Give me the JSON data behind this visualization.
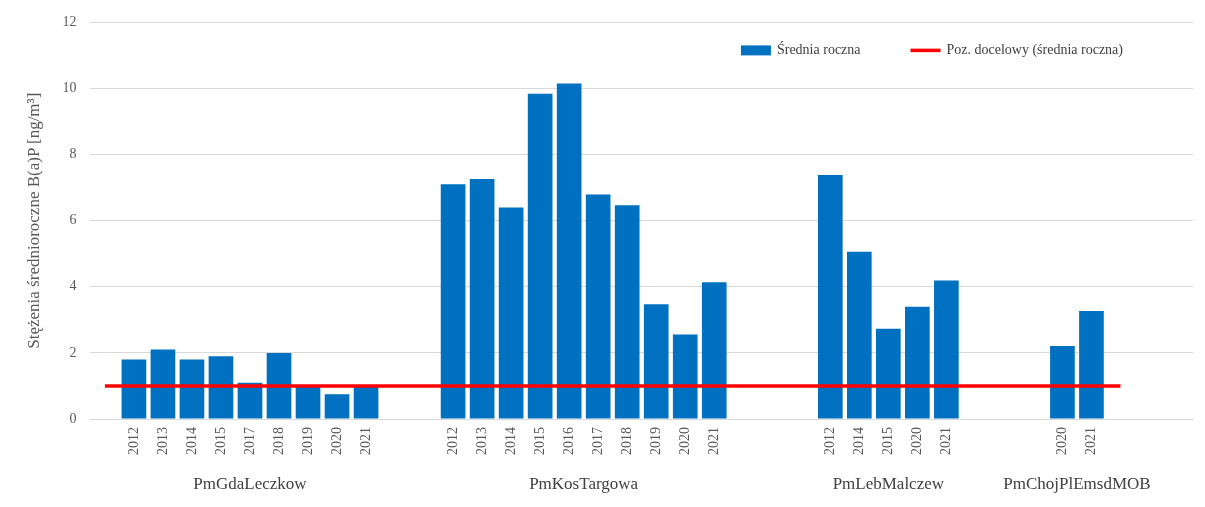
{
  "chart_data": {
    "type": "bar",
    "ylabel": "Stężenia średnioroczne B(a)P [ng/m³]",
    "categories": [
      null,
      "2012",
      "2013",
      "2014",
      "2015",
      "2017",
      "2018",
      "2019",
      "2020",
      "2021",
      null,
      null,
      "2012",
      "2013",
      "2014",
      "2015",
      "2016",
      "2017",
      "2018",
      "2019",
      "2020",
      "2021",
      null,
      null,
      null,
      "2012",
      "2014",
      "2015",
      "2020",
      "2021",
      null,
      null,
      null,
      "2020",
      "2021",
      null,
      null,
      null
    ],
    "series": [
      {
        "name": "Średnia roczna",
        "color": "#0070c0",
        "values": [
          null,
          1.8,
          2.1,
          1.8,
          1.9,
          1.1,
          2.0,
          1.0,
          0.75,
          1.0,
          null,
          null,
          7.1,
          7.26,
          6.4,
          9.84,
          10.15,
          6.79,
          6.47,
          3.47,
          2.56,
          4.14,
          null,
          null,
          null,
          7.38,
          5.06,
          2.73,
          3.4,
          4.19,
          null,
          null,
          null,
          2.21,
          3.27,
          null,
          null,
          null
        ]
      },
      {
        "name": "Poz. docelowy (średnia roczna)",
        "type": "line",
        "color": "#ff0000",
        "values": [
          1,
          1,
          1,
          1,
          1,
          1,
          1,
          1,
          1,
          1,
          1,
          1,
          1,
          1,
          1,
          1,
          1,
          1,
          1,
          1,
          1,
          1,
          1,
          1,
          1,
          1,
          1,
          1,
          1,
          1,
          1,
          1,
          1,
          1,
          1,
          1,
          null,
          null
        ]
      }
    ],
    "annotations": [
      "PmGdaLeczkow",
      "PmKosTargowa",
      "PmLebMalczew",
      "PmChojPlEmsdMOB"
    ],
    "ylim": [
      0,
      12
    ],
    "yticks": [
      0,
      2,
      4,
      6,
      8,
      10,
      12
    ],
    "grid": "y",
    "legend": "top right",
    "marker": "none",
    "line_style": "solid"
  }
}
